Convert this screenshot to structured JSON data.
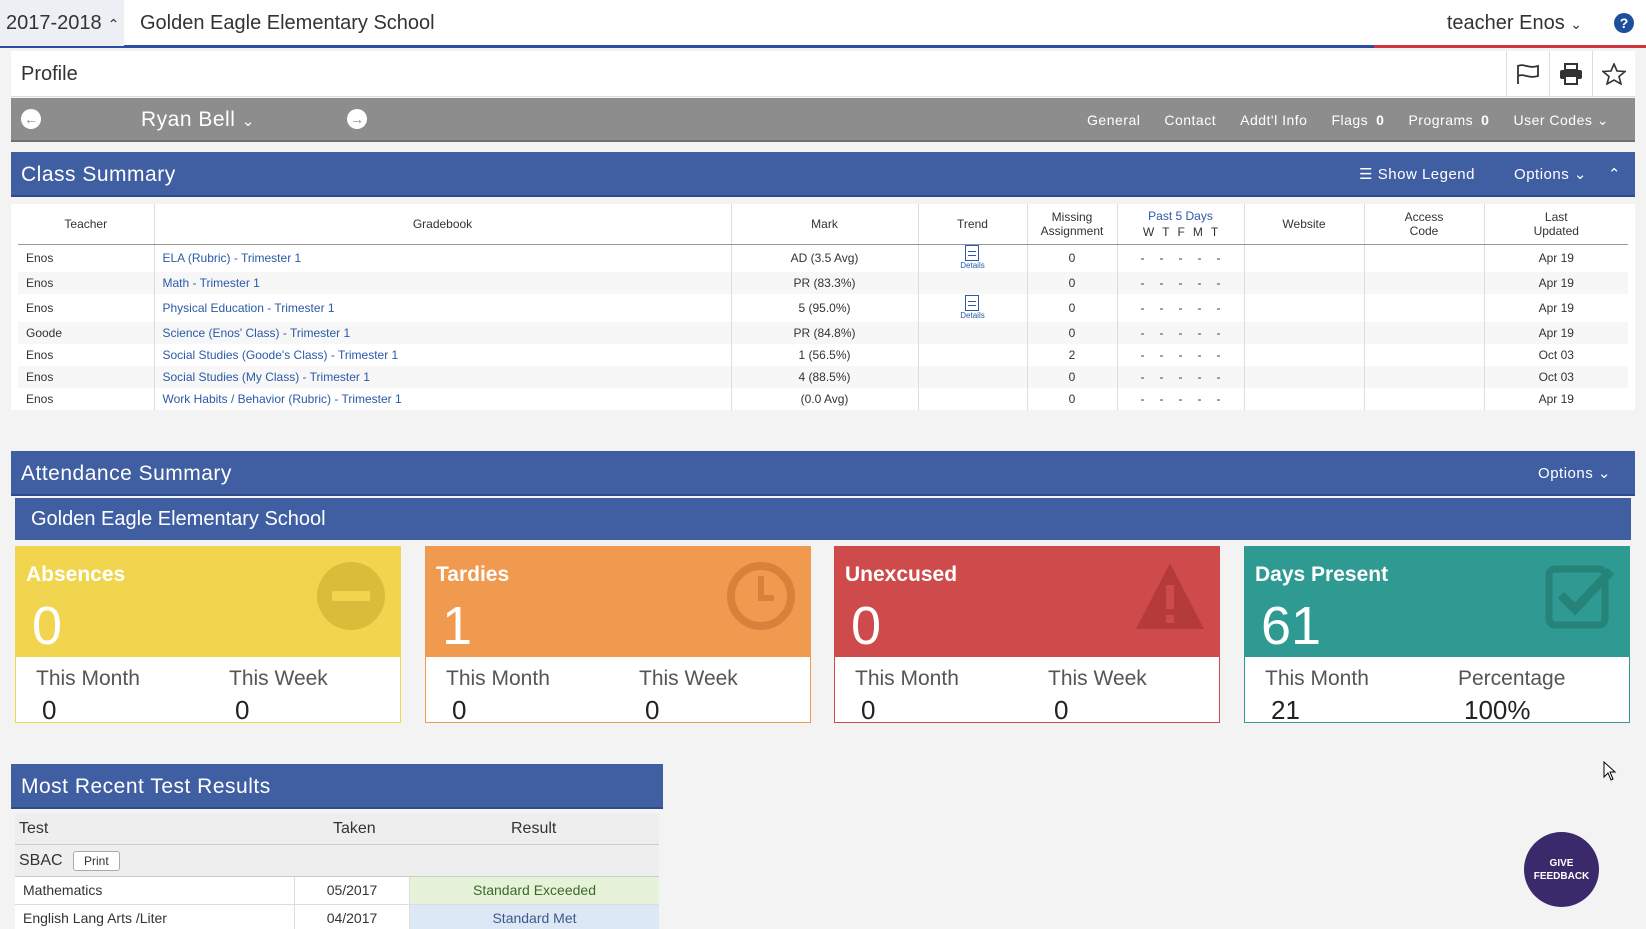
{
  "topbar": {
    "year": "2017-2018",
    "school": "Golden Eagle Elementary School",
    "user": "teacher Enos"
  },
  "profile": {
    "title": "Profile"
  },
  "student": {
    "name": "Ryan Bell",
    "tabs": [
      {
        "label": "General"
      },
      {
        "label": "Contact"
      },
      {
        "label": "Addt'l Info"
      },
      {
        "label": "Flags",
        "count": "0"
      },
      {
        "label": "Programs",
        "count": "0"
      },
      {
        "label": "User Codes"
      }
    ]
  },
  "class_summary": {
    "title": "Class Summary",
    "show_legend": "Show Legend",
    "options": "Options",
    "headers": {
      "teacher": "Teacher",
      "gradebook": "Gradebook",
      "mark": "Mark",
      "trend": "Trend",
      "missing1": "Missing",
      "missing2": "Assignment",
      "past5": "Past 5 Days",
      "days": [
        "W",
        "T",
        "F",
        "M",
        "T"
      ],
      "website": "Website",
      "access1": "Access",
      "access2": "Code",
      "last1": "Last",
      "last2": "Updated"
    },
    "details_label": "Details",
    "rows": [
      {
        "teacher": "Enos",
        "gradebook": "ELA (Rubric) - Trimester 1",
        "mark": "AD (3.5 Avg)",
        "trend": true,
        "missing": "0",
        "updated": "Apr 19"
      },
      {
        "teacher": "Enos",
        "gradebook": "Math - Trimester 1",
        "mark": "PR (83.3%)",
        "trend": false,
        "missing": "0",
        "updated": "Apr 19"
      },
      {
        "teacher": "Enos",
        "gradebook": "Physical Education - Trimester 1",
        "mark": "5 (95.0%)",
        "trend": true,
        "missing": "0",
        "updated": "Apr 19"
      },
      {
        "teacher": "Goode",
        "gradebook": "Science (Enos' Class) - Trimester 1",
        "mark": "PR (84.8%)",
        "trend": false,
        "missing": "0",
        "updated": "Apr 19"
      },
      {
        "teacher": "Enos",
        "gradebook": "Social Studies (Goode's Class) - Trimester 1",
        "mark": "1 (56.5%)",
        "trend": false,
        "missing": "2",
        "updated": "Oct 03"
      },
      {
        "teacher": "Enos",
        "gradebook": "Social Studies (My Class) - Trimester 1",
        "mark": "4 (88.5%)",
        "trend": false,
        "missing": "0",
        "updated": "Oct 03"
      },
      {
        "teacher": "Enos",
        "gradebook": "Work Habits / Behavior (Rubric) - Trimester 1",
        "mark": "(0.0 Avg)",
        "trend": false,
        "missing": "0",
        "updated": "Apr 19"
      }
    ]
  },
  "attendance": {
    "title": "Attendance Summary",
    "options": "Options",
    "school": "Golden Eagle Elementary School",
    "cards": [
      {
        "label": "Absences",
        "value": "0",
        "sub1": "This Month",
        "val1": "0",
        "sub2": "This Week",
        "val2": "0",
        "color": "#f2d54e",
        "icon": "minus-circle-icon"
      },
      {
        "label": "Tardies",
        "value": "1",
        "sub1": "This Month",
        "val1": "0",
        "sub2": "This Week",
        "val2": "0",
        "color": "#f09a50",
        "icon": "clock-icon"
      },
      {
        "label": "Unexcused",
        "value": "0",
        "sub1": "This Month",
        "val1": "0",
        "sub2": "This Week",
        "val2": "0",
        "color": "#cf4b4b",
        "icon": "warning-icon"
      },
      {
        "label": "Days Present",
        "value": "61",
        "sub1": "This Month",
        "val1": "21",
        "sub2": "Percentage",
        "val2": "100%",
        "color": "#2f9a91",
        "icon": "check-square-icon"
      }
    ]
  },
  "tests": {
    "title": "Most Recent Test Results",
    "headers": {
      "test": "Test",
      "taken": "Taken",
      "result": "Result"
    },
    "group": "SBAC",
    "print": "Print",
    "rows": [
      {
        "test": "Mathematics",
        "taken": "05/2017",
        "result": "Standard Exceeded"
      },
      {
        "test": "English Lang Arts /Liter",
        "taken": "04/2017",
        "result": "Standard Met"
      }
    ]
  },
  "feedback": {
    "line1": "GIVE",
    "line2": "FEEDBACK"
  },
  "colors": {
    "brand": "#3f5fa2",
    "link": "#2a5aa8",
    "missing_alert": "#e0201f"
  }
}
